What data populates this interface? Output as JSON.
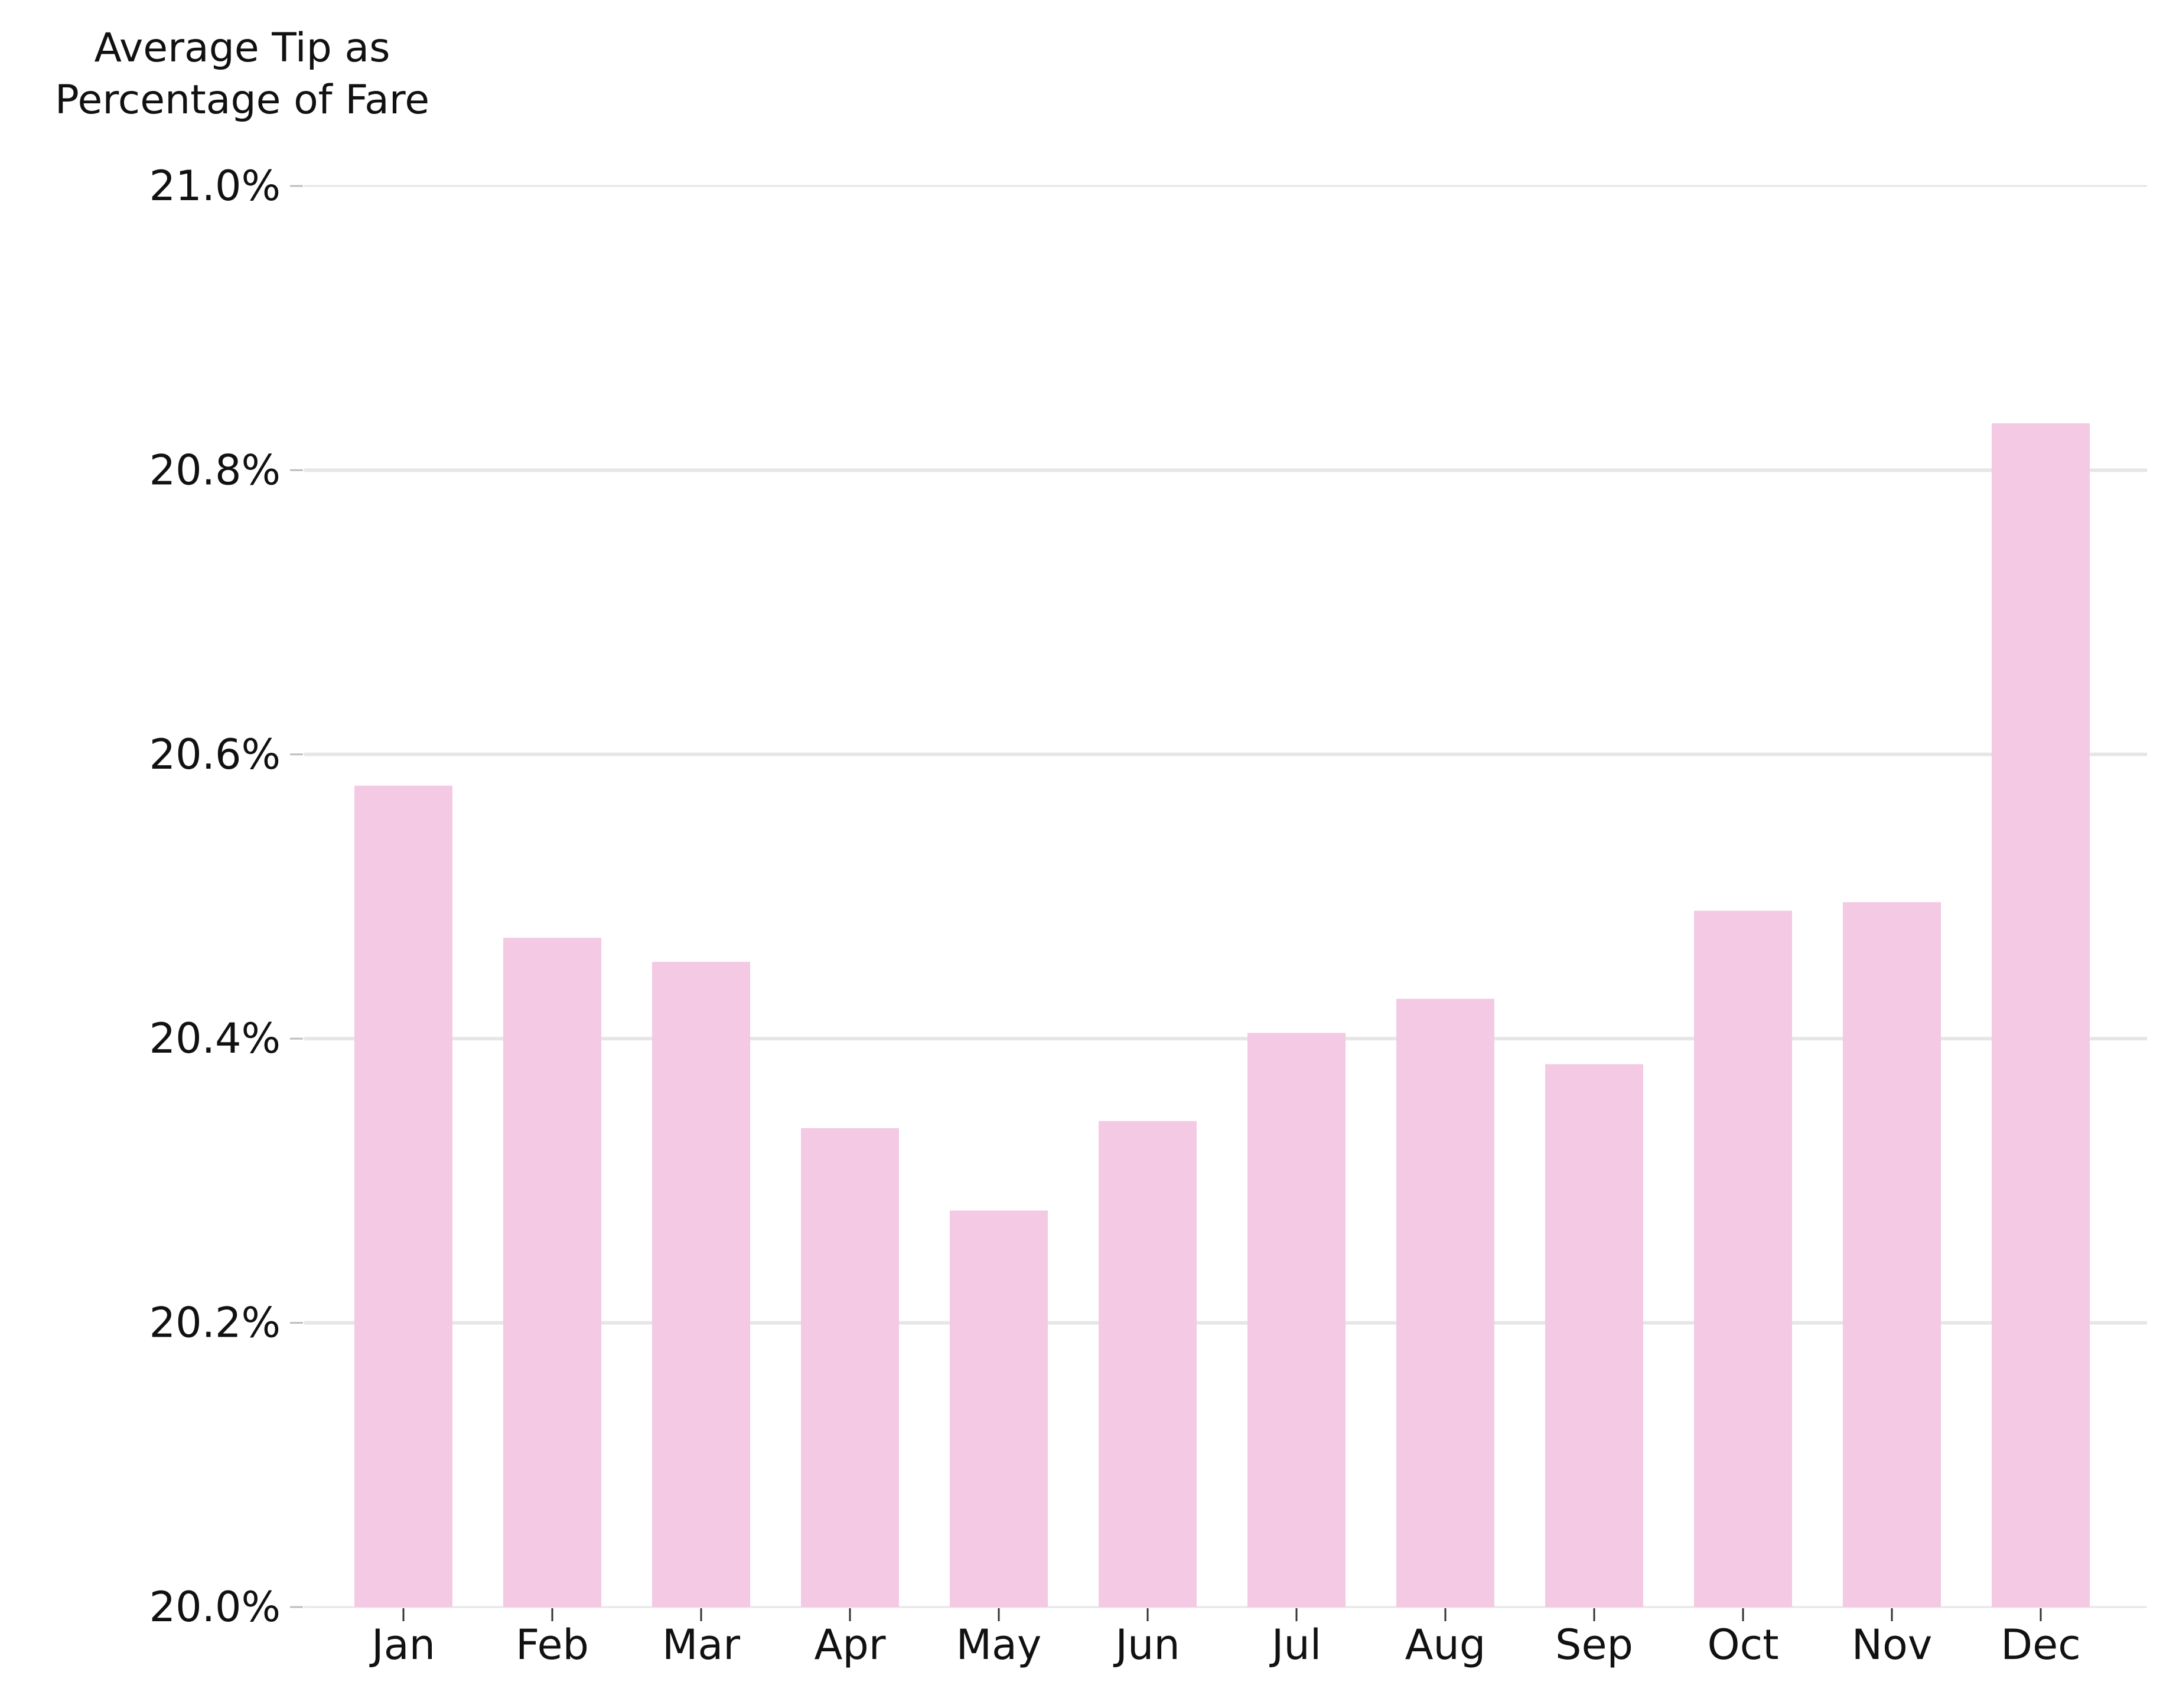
{
  "chart_data": {
    "type": "bar",
    "title": "",
    "xlabel": "",
    "ylabel_lines": [
      "Average Tip as",
      "Percentage of Fare"
    ],
    "categories": [
      "Jan",
      "Feb",
      "Mar",
      "Apr",
      "May",
      "Jun",
      "Jul",
      "Aug",
      "Sep",
      "Oct",
      "Nov",
      "Dec"
    ],
    "values": [
      20.578,
      20.471,
      20.454,
      20.337,
      20.279,
      20.342,
      20.404,
      20.428,
      20.382,
      20.49,
      20.496,
      20.833
    ],
    "unit": "%",
    "ylim": [
      20.0,
      21.0
    ],
    "yticks": [
      20.0,
      20.2,
      20.4,
      20.6,
      20.8,
      21.0
    ],
    "ytick_labels": [
      "20.0%",
      "20.2%",
      "20.4%",
      "20.6%",
      "20.8%",
      "21.0%"
    ],
    "grid": "horizontal",
    "legend": "none",
    "bar_color": "#f3c9e3",
    "grid_color": "#e6e6e6",
    "text_color": "#111111"
  }
}
